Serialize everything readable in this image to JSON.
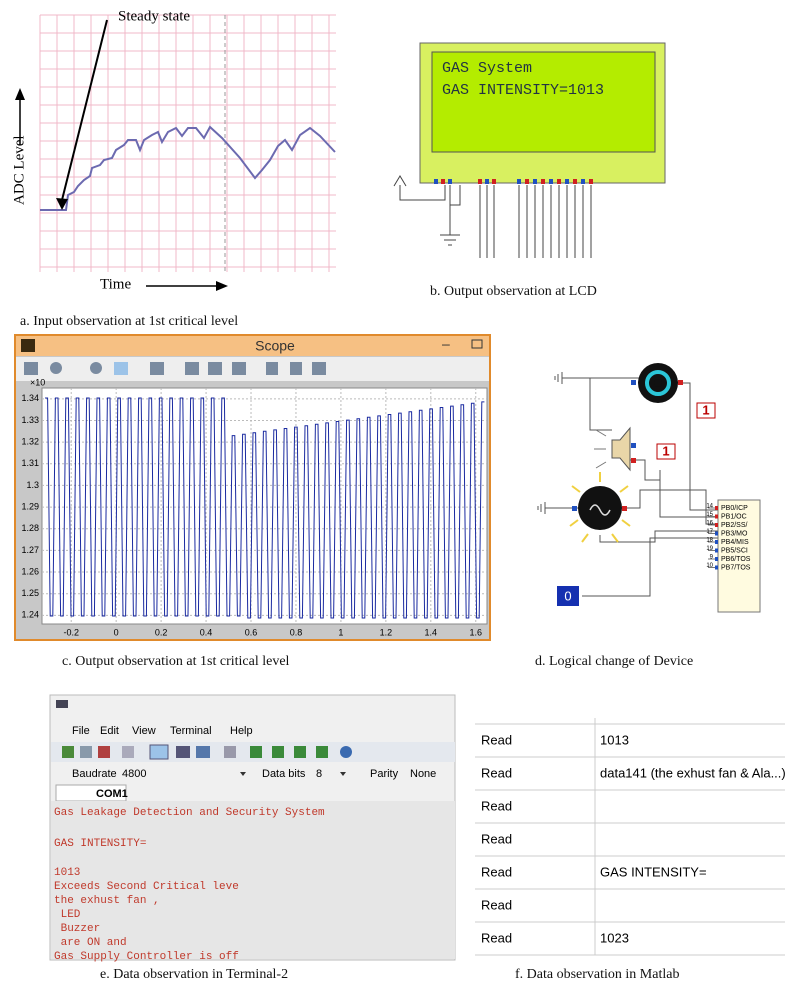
{
  "panels": {
    "a": {
      "annotation": "Steady state",
      "y_label": "ADC Level",
      "x_label": "Time",
      "caption": "a.  Input observation at 1st critical level"
    },
    "b": {
      "lcd_lines": [
        "GAS System",
        "GAS INTENSITY=1013"
      ],
      "caption": "b.  Output observation at LCD"
    },
    "c": {
      "title": "Scope",
      "exponent": "×10",
      "xlim": [
        -0.33,
        1.65
      ],
      "ylim": [
        1.236,
        1.345
      ],
      "xticks": [
        -0.2,
        0,
        0.2,
        0.4,
        0.6,
        0.8,
        1,
        1.2,
        1.4,
        1.6
      ],
      "yticks": [
        1.24,
        1.25,
        1.26,
        1.27,
        1.28,
        1.29,
        1.3,
        1.31,
        1.32,
        1.33,
        1.34
      ],
      "caption": "c.  Output observation at 1st critical level"
    },
    "d": {
      "indicators": [
        "1",
        "1",
        "0"
      ],
      "pins": [
        {
          "number": "14",
          "label": "PB0/ICP"
        },
        {
          "number": "15",
          "label": "PB1/OC"
        },
        {
          "number": "16",
          "label": "PB2/SS/"
        },
        {
          "number": "17",
          "label": "PB3/MO"
        },
        {
          "number": "18",
          "label": "PB4/MIS"
        },
        {
          "number": "19",
          "label": "PB5/SCI"
        },
        {
          "number": "9",
          "label": "PB6/TOS"
        },
        {
          "number": "10",
          "label": "PB7/TOS"
        }
      ],
      "caption": "d.  Logical change of Device"
    },
    "e": {
      "menu": [
        "File",
        "Edit",
        "View",
        "Terminal",
        "Help"
      ],
      "settings": [
        "Baudrate",
        "4800",
        "Data bits",
        "8",
        "Parity",
        "None"
      ],
      "tab": "COM1",
      "lines": [
        "Gas Leakage Detection and Security System",
        "GAS INTENSITY=",
        "1013",
        "Exceeds Second Critical leve",
        "the exhust fan ,",
        " LED",
        " Buzzer",
        " are ON and",
        "Gas Supply Controller is off"
      ],
      "caption": "e.  Data observation in Terminal-2"
    },
    "f": {
      "rows": [
        {
          "op": "Read",
          "value": "1013"
        },
        {
          "op": "Read",
          "value": "data141 (the exhust fan & Ala...)"
        },
        {
          "op": "Read"
        },
        {
          "op": "Read"
        },
        {
          "op": "Read",
          "value": "GAS INTENSITY="
        },
        {
          "op": "Read"
        },
        {
          "op": "Read",
          "value": "1023"
        }
      ],
      "caption": "f. Data observation in Matlab"
    }
  }
}
